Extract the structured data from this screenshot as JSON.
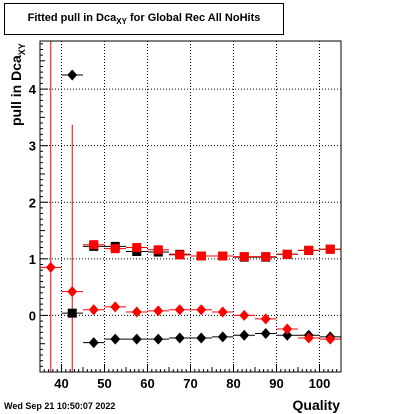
{
  "header": {
    "title_main": "Fitted pull in Dca",
    "title_sub": "XY",
    "title_tail": " for Global Rec All NoHits"
  },
  "axes": {
    "ylabel_main": "pull in Dca",
    "ylabel_sub": "XY",
    "xlabel": "Quality"
  },
  "footer": {
    "timestamp": "Wed Sep 21 10:50:07 2022"
  },
  "colors": {
    "series_black": "#000000",
    "series_red": "#ff0000"
  },
  "chart_data": [
    {
      "type": "scatter",
      "xlim": [
        35,
        105
      ],
      "ylim": [
        -1.0,
        4.85
      ],
      "x_ticks": [
        40,
        50,
        60,
        70,
        80,
        90,
        100
      ],
      "y_ticks": [
        0,
        1,
        2,
        3,
        4
      ],
      "grid": true,
      "series": [
        {
          "marker": "diamond",
          "color": "#000000",
          "points": [
            {
              "x": 42.5,
              "y": 4.25
            },
            {
              "x": 47.5,
              "y": -0.48
            },
            {
              "x": 52.5,
              "y": -0.42
            },
            {
              "x": 57.5,
              "y": -0.42
            },
            {
              "x": 62.5,
              "y": -0.42
            },
            {
              "x": 67.5,
              "y": -0.4
            },
            {
              "x": 72.5,
              "y": -0.4
            },
            {
              "x": 77.5,
              "y": -0.38
            },
            {
              "x": 82.5,
              "y": -0.35
            },
            {
              "x": 87.5,
              "y": -0.32
            },
            {
              "x": 92.5,
              "y": -0.35
            },
            {
              "x": 97.5,
              "y": -0.35
            },
            {
              "x": 102.5,
              "y": -0.38
            }
          ]
        },
        {
          "marker": "diamond",
          "color": "#ff0000",
          "points": [
            {
              "x": 37.5,
              "y": 0.85,
              "err": 8.0
            },
            {
              "x": 42.5,
              "y": 0.42,
              "err": 2.95
            },
            {
              "x": 47.5,
              "y": 0.1,
              "err": 0.08
            },
            {
              "x": 52.5,
              "y": 0.15
            },
            {
              "x": 57.5,
              "y": 0.06
            },
            {
              "x": 62.5,
              "y": 0.08
            },
            {
              "x": 67.5,
              "y": 0.1
            },
            {
              "x": 72.5,
              "y": 0.1
            },
            {
              "x": 77.5,
              "y": 0.06
            },
            {
              "x": 82.5,
              "y": 0.0
            },
            {
              "x": 87.5,
              "y": -0.06
            },
            {
              "x": 92.5,
              "y": -0.24
            },
            {
              "x": 97.5,
              "y": -0.4
            },
            {
              "x": 102.5,
              "y": -0.42
            }
          ]
        },
        {
          "marker": "square",
          "color": "#000000",
          "points": [
            {
              "x": 42.5,
              "y": 0.04
            },
            {
              "x": 47.5,
              "y": 1.22
            },
            {
              "x": 52.5,
              "y": 1.22
            },
            {
              "x": 57.5,
              "y": 1.13
            },
            {
              "x": 62.5,
              "y": 1.12
            },
            {
              "x": 67.5,
              "y": 1.08
            },
            {
              "x": 72.5,
              "y": 1.05
            },
            {
              "x": 77.5,
              "y": 1.05
            },
            {
              "x": 82.5,
              "y": 1.03
            },
            {
              "x": 87.5,
              "y": 1.03
            },
            {
              "x": 92.5,
              "y": 1.08
            },
            {
              "x": 97.5,
              "y": 1.15
            },
            {
              "x": 102.5,
              "y": 1.17
            }
          ]
        },
        {
          "marker": "square",
          "color": "#ff0000",
          "points": [
            {
              "x": 47.5,
              "y": 1.25
            },
            {
              "x": 52.5,
              "y": 1.18
            },
            {
              "x": 57.5,
              "y": 1.2
            },
            {
              "x": 62.5,
              "y": 1.16
            },
            {
              "x": 67.5,
              "y": 1.07
            },
            {
              "x": 72.5,
              "y": 1.05
            },
            {
              "x": 77.5,
              "y": 1.05
            },
            {
              "x": 82.5,
              "y": 1.04
            },
            {
              "x": 87.5,
              "y": 1.04
            },
            {
              "x": 92.5,
              "y": 1.08
            },
            {
              "x": 97.5,
              "y": 1.15
            },
            {
              "x": 102.5,
              "y": 1.17
            }
          ]
        }
      ]
    }
  ]
}
